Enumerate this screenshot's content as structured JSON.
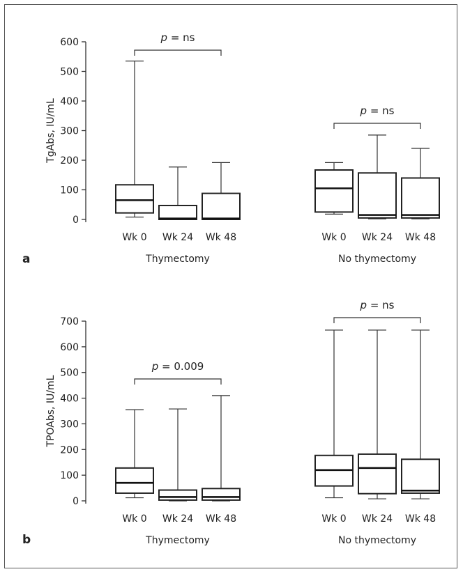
{
  "chart_data": [
    {
      "type": "box",
      "panel_label": "a",
      "ylabel": "TgAbs, IU/mL",
      "ylim": [
        0,
        600
      ],
      "yticks": [
        0,
        100,
        200,
        300,
        400,
        500,
        600
      ],
      "groups": [
        {
          "label": "Thymectomy",
          "categories": [
            "Wk 0",
            "Wk 24",
            "Wk 48"
          ],
          "boxes": [
            {
              "min": 8,
              "q1": 22,
              "median": 65,
              "q3": 117,
              "max": 535
            },
            {
              "min": 0,
              "q1": 0,
              "median": 3,
              "q3": 47,
              "max": 177
            },
            {
              "min": 0,
              "q1": 0,
              "median": 3,
              "q3": 88,
              "max": 192
            }
          ],
          "annotation": {
            "p_prefix": "p",
            "text": " = ns"
          }
        },
        {
          "label": "No thymectomy",
          "categories": [
            "Wk 0",
            "Wk 24",
            "Wk 48"
          ],
          "boxes": [
            {
              "min": 18,
              "q1": 25,
              "median": 105,
              "q3": 167,
              "max": 192
            },
            {
              "min": 2,
              "q1": 5,
              "median": 15,
              "q3": 157,
              "max": 285
            },
            {
              "min": 2,
              "q1": 5,
              "median": 15,
              "q3": 140,
              "max": 240
            }
          ],
          "annotation": {
            "p_prefix": "p",
            "text": " = ns"
          }
        }
      ]
    },
    {
      "type": "box",
      "panel_label": "b",
      "ylabel": "TPOAbs, IU/mL",
      "ylim": [
        0,
        700
      ],
      "yticks": [
        0,
        100,
        200,
        300,
        400,
        500,
        600,
        700
      ],
      "groups": [
        {
          "label": "Thymectomy",
          "categories": [
            "Wk 0",
            "Wk 24",
            "Wk 48"
          ],
          "boxes": [
            {
              "min": 12,
              "q1": 30,
              "median": 70,
              "q3": 128,
              "max": 355
            },
            {
              "min": 0,
              "q1": 3,
              "median": 15,
              "q3": 42,
              "max": 358
            },
            {
              "min": 0,
              "q1": 3,
              "median": 15,
              "q3": 48,
              "max": 410
            }
          ],
          "annotation": {
            "p_prefix": "p",
            "text": " = 0.009"
          }
        },
        {
          "label": "No thymectomy",
          "categories": [
            "Wk 0",
            "Wk 24",
            "Wk 48"
          ],
          "boxes": [
            {
              "min": 12,
              "q1": 58,
              "median": 120,
              "q3": 177,
              "max": 665
            },
            {
              "min": 8,
              "q1": 28,
              "median": 128,
              "q3": 182,
              "max": 665
            },
            {
              "min": 8,
              "q1": 30,
              "median": 40,
              "q3": 162,
              "max": 665
            }
          ],
          "annotation": {
            "p_prefix": "p",
            "text": " = ns"
          }
        }
      ]
    }
  ]
}
